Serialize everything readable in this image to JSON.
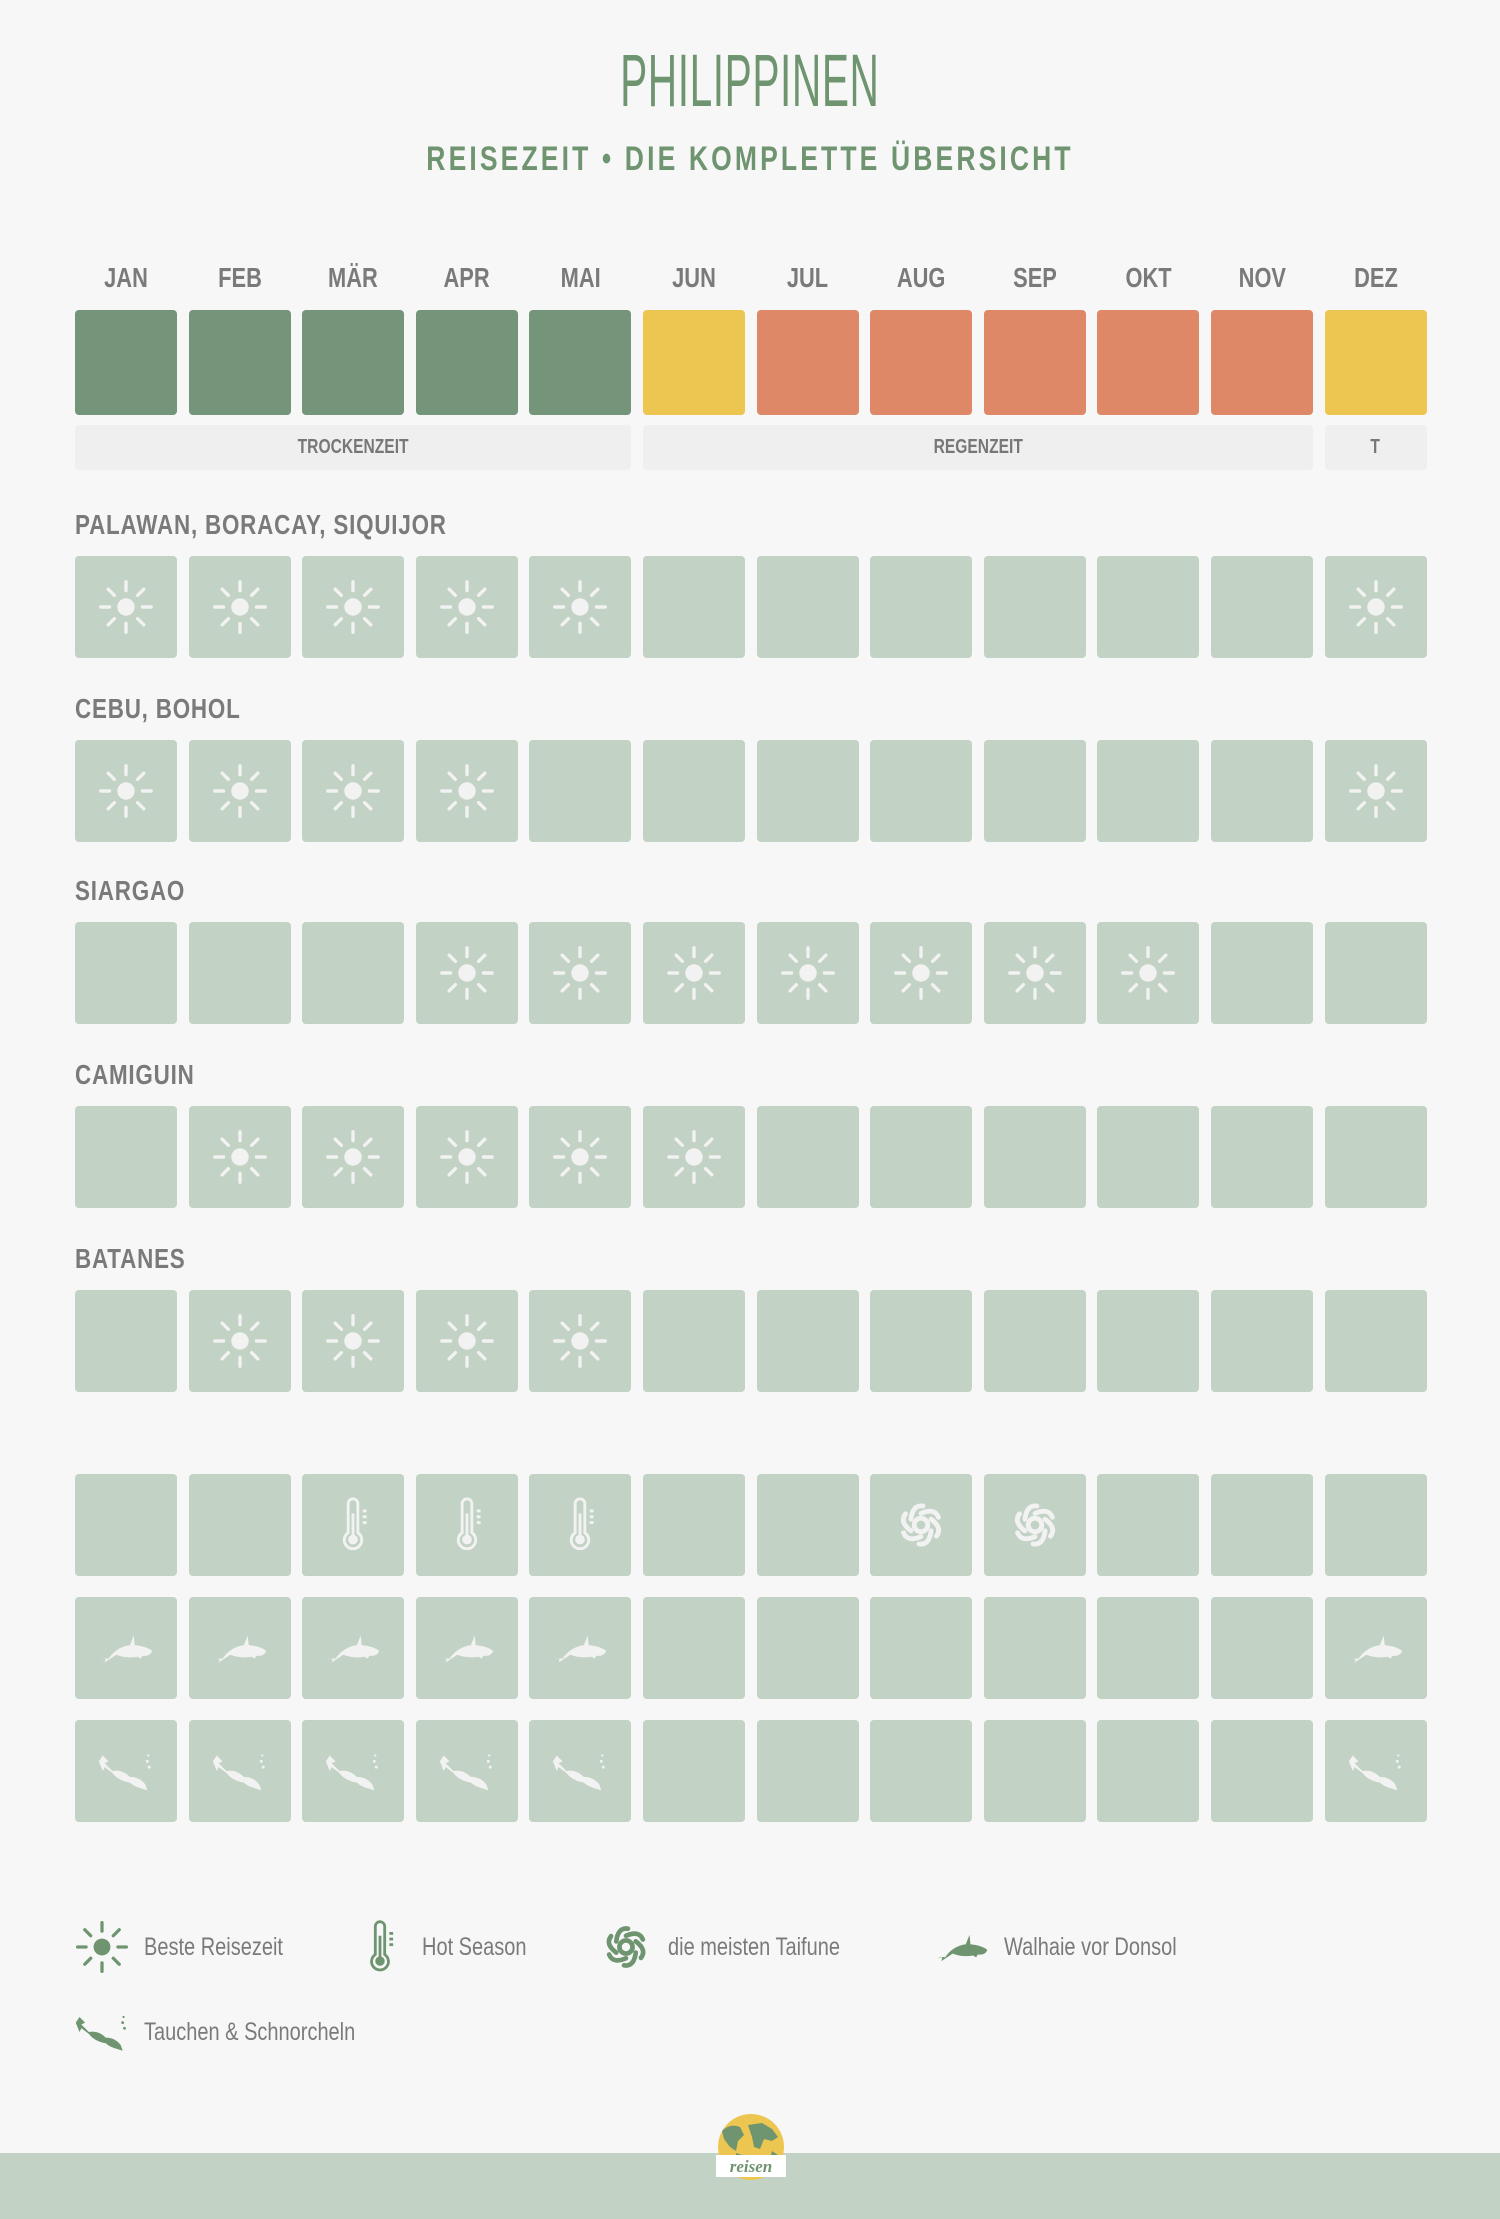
{
  "header": {
    "title": "PHILIPPINEN",
    "subtitle": "REISEZEIT • DIE KOMPLETTE ÜBERSICHT"
  },
  "colors": {
    "dry": "#74957a",
    "transition": "#ecc651",
    "rain": "#de8868",
    "cell": "#c2d2c4",
    "icon_on_cell": "#f2f2f2",
    "legend_icon": "#6f9470",
    "background": "#f7f7f7"
  },
  "months": [
    "JAN",
    "FEB",
    "MÄR",
    "APR",
    "MAI",
    "JUN",
    "JUL",
    "AUG",
    "SEP",
    "OKT",
    "NOV",
    "DEZ"
  ],
  "climate": [
    "dry",
    "dry",
    "dry",
    "dry",
    "dry",
    "transition",
    "rain",
    "rain",
    "rain",
    "rain",
    "rain",
    "transition"
  ],
  "seasons": [
    {
      "label": "TROCKENZEIT",
      "from": 0,
      "to": 4
    },
    {
      "label": "REGENZEIT",
      "from": 5,
      "to": 10
    },
    {
      "label": "T",
      "from": 11,
      "to": 11
    }
  ],
  "regions": [
    {
      "name": "PALAWAN, BORACAY, SIQUIJOR",
      "icons": [
        "sun",
        "sun",
        "sun",
        "sun",
        "sun",
        "",
        "",
        "",
        "",
        "",
        "",
        "sun"
      ]
    },
    {
      "name": "CEBU, BOHOL",
      "icons": [
        "sun",
        "sun",
        "sun",
        "sun",
        "",
        "",
        "",
        "",
        "",
        "",
        "",
        "sun"
      ]
    },
    {
      "name": "SIARGAO",
      "icons": [
        "",
        "",
        "",
        "sun",
        "sun",
        "sun",
        "sun",
        "sun",
        "sun",
        "sun",
        "",
        ""
      ]
    },
    {
      "name": "CAMIGUIN",
      "icons": [
        "",
        "sun",
        "sun",
        "sun",
        "sun",
        "sun",
        "",
        "",
        "",
        "",
        "",
        ""
      ]
    },
    {
      "name": "BATANES",
      "icons": [
        "",
        "sun",
        "sun",
        "sun",
        "sun",
        "",
        "",
        "",
        "",
        "",
        "",
        ""
      ]
    }
  ],
  "extra_rows": [
    {
      "icons": [
        "",
        "",
        "thermometer",
        "thermometer",
        "thermometer",
        "",
        "",
        "typhoon",
        "typhoon",
        "",
        "",
        ""
      ]
    },
    {
      "icons": [
        "whale",
        "whale",
        "whale",
        "whale",
        "whale",
        "",
        "",
        "",
        "",
        "",
        "",
        "whale"
      ]
    },
    {
      "icons": [
        "diver",
        "diver",
        "diver",
        "diver",
        "diver",
        "",
        "",
        "",
        "",
        "",
        "",
        "diver"
      ]
    }
  ],
  "legend": [
    {
      "icon": "sun",
      "label": "Beste Reisezeit"
    },
    {
      "icon": "thermometer",
      "label": "Hot Season"
    },
    {
      "icon": "typhoon",
      "label": "die meisten Taifune"
    },
    {
      "icon": "whale",
      "label": "Walhaie vor Donsol"
    },
    {
      "icon": "diver",
      "label": "Tauchen & Schnorcheln"
    }
  ],
  "footer": {
    "logo_text": "reisen"
  }
}
